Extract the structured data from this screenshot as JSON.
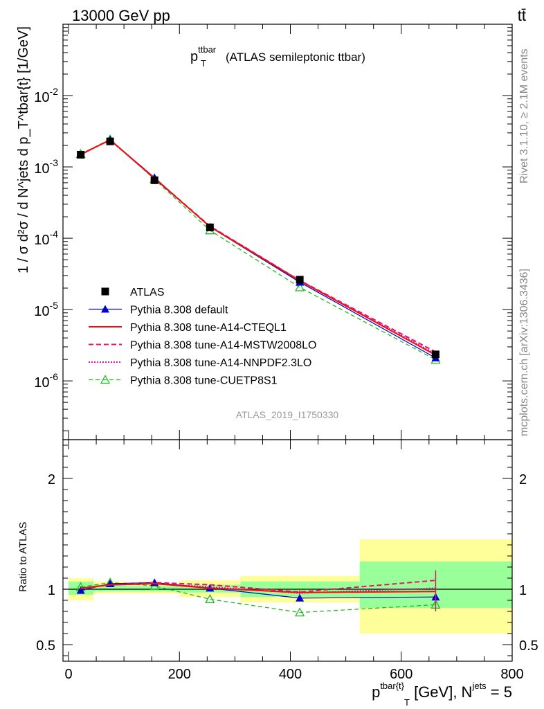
{
  "header": {
    "energy_label": "13000 GeV pp",
    "process_label": "tt̄",
    "side_label_rivet": "Rivet 3.1.10, ≥ 2.1M events",
    "side_label_mcplots": "mcplots.cern.ch [arXiv:1306.3436]",
    "analysis_id": "ATLAS_2019_I1750330"
  },
  "colors": {
    "data": "#000000",
    "default": "#0000cc",
    "cteql1": "#ee1111",
    "mstw": "#ee1166",
    "nnpdf": "#dd11aa",
    "cuetp8s1": "#22bb22",
    "band_yellow": "#ffff99",
    "band_green": "#99ff99"
  },
  "chart_data": [
    {
      "type": "line",
      "title": "p_T^ttbar (ATLAS semileptonic ttbar)",
      "title_main": "p",
      "title_sup": "ttbar",
      "title_sub": "T",
      "title_rest": "(ATLAS semileptonic ttbar)",
      "ylabel": "1 / σ d²σ / d N^jets d p_T^tbar{t} [1/GeV]",
      "yscale": "log",
      "ylim": [
        1.5e-07,
        0.1
      ],
      "xlim": [
        -10,
        800
      ],
      "ytick_labels": [
        {
          "base": "10",
          "exp": "-2",
          "value": 0.01
        },
        {
          "base": "10",
          "exp": "-3",
          "value": 0.001
        },
        {
          "base": "10",
          "exp": "-4",
          "value": 0.0001
        },
        {
          "base": "10",
          "exp": "-5",
          "value": 1e-05
        },
        {
          "base": "10",
          "exp": "-6",
          "value": 1e-06
        }
      ],
      "x": [
        22,
        75,
        155,
        255,
        417,
        662
      ],
      "legend_position": "lower-left",
      "series": [
        {
          "key": "data",
          "name": "ATLAS",
          "values": [
            0.00148,
            0.00228,
            0.00065,
            0.000142,
            2.62e-05,
            2.35e-06
          ]
        },
        {
          "key": "default",
          "name": "Pythia 8.308 default",
          "values": [
            0.00147,
            0.0024,
            0.00071,
            0.000144,
            2.42e-05,
            2.1e-06
          ]
        },
        {
          "key": "cteql1",
          "name": "Pythia 8.308 tune-A14-CTEQL1",
          "values": [
            0.0015,
            0.00239,
            0.00069,
            0.000145,
            2.54e-05,
            2.3e-06
          ]
        },
        {
          "key": "mstw",
          "name": "Pythia 8.308 tune-A14-MSTW2008LO",
          "values": [
            0.0015,
            0.00238,
            0.000695,
            0.000148,
            2.56e-05,
            2.55e-06
          ]
        },
        {
          "key": "nnpdf",
          "name": "Pythia 8.308 tune-A14-NNPDF2.3LO",
          "values": [
            0.00149,
            0.00239,
            0.00069,
            0.000146,
            2.54e-05,
            2.4e-06
          ]
        },
        {
          "key": "cuetp8s1",
          "name": "Pythia 8.308 tune-CUETP8S1",
          "values": [
            0.00152,
            0.00243,
            0.00067,
            0.000129,
            2.05e-05,
            1.98e-06
          ]
        }
      ]
    },
    {
      "type": "line",
      "title": "",
      "ylabel": "Ratio to ATLAS",
      "xlabel": "p_T^tbar{t} [GeV], N^jets = 5",
      "xlabel_parts": {
        "p": "p",
        "sup": "tbar{t}",
        "sub": "T",
        "rest": " [GeV], N",
        "sup2": "jets",
        "tail": " = 5"
      },
      "ylim": [
        0.35,
        2.35
      ],
      "xlim": [
        -10,
        800
      ],
      "yticks": [
        0.5,
        1,
        2
      ],
      "ytick_labels": [
        "0.5",
        "1",
        "2"
      ],
      "xticks": [
        0,
        200,
        400,
        600,
        800
      ],
      "xtick_labels": [
        "0",
        "200",
        "400",
        "600",
        "800"
      ],
      "x": [
        22,
        75,
        155,
        255,
        417,
        662
      ],
      "bands": [
        {
          "xmin": 0,
          "xmax": 45,
          "yellow": [
            0.9,
            1.1
          ],
          "green": [
            0.95,
            1.07
          ]
        },
        {
          "xmin": 45,
          "xmax": 105,
          "yellow": [
            0.96,
            1.07
          ],
          "green": [
            0.98,
            1.04
          ]
        },
        {
          "xmin": 105,
          "xmax": 200,
          "yellow": [
            0.96,
            1.05
          ],
          "green": [
            0.98,
            1.03
          ]
        },
        {
          "xmin": 200,
          "xmax": 310,
          "yellow": [
            0.93,
            1.08
          ],
          "green": [
            0.97,
            1.04
          ]
        },
        {
          "xmin": 310,
          "xmax": 525,
          "yellow": [
            0.88,
            1.12
          ],
          "green": [
            0.93,
            1.07
          ]
        },
        {
          "xmin": 525,
          "xmax": 800,
          "yellow": [
            0.6,
            1.45
          ],
          "green": [
            0.83,
            1.25
          ]
        }
      ],
      "series": [
        {
          "key": "default",
          "name": "Pythia 8.308 default",
          "values": [
            0.99,
            1.05,
            1.06,
            1.01,
            0.92,
            0.93
          ]
        },
        {
          "key": "cteql1",
          "name": "Pythia 8.308 tune-A14-CTEQL1",
          "values": [
            1.01,
            1.04,
            1.05,
            1.01,
            0.97,
            0.98
          ]
        },
        {
          "key": "mstw",
          "name": "Pythia 8.308 tune-A14-MSTW2008LO",
          "values": [
            1.01,
            1.04,
            1.06,
            1.04,
            0.975,
            1.08
          ]
        },
        {
          "key": "nnpdf",
          "name": "Pythia 8.308 tune-A14-NNPDF2.3LO",
          "values": [
            1.005,
            1.04,
            1.05,
            1.02,
            0.965,
            1.01
          ]
        },
        {
          "key": "cuetp8s1",
          "name": "Pythia 8.308 tune-CUETP8S1",
          "values": [
            1.02,
            1.06,
            1.03,
            0.91,
            0.79,
            0.86
          ]
        }
      ]
    }
  ]
}
